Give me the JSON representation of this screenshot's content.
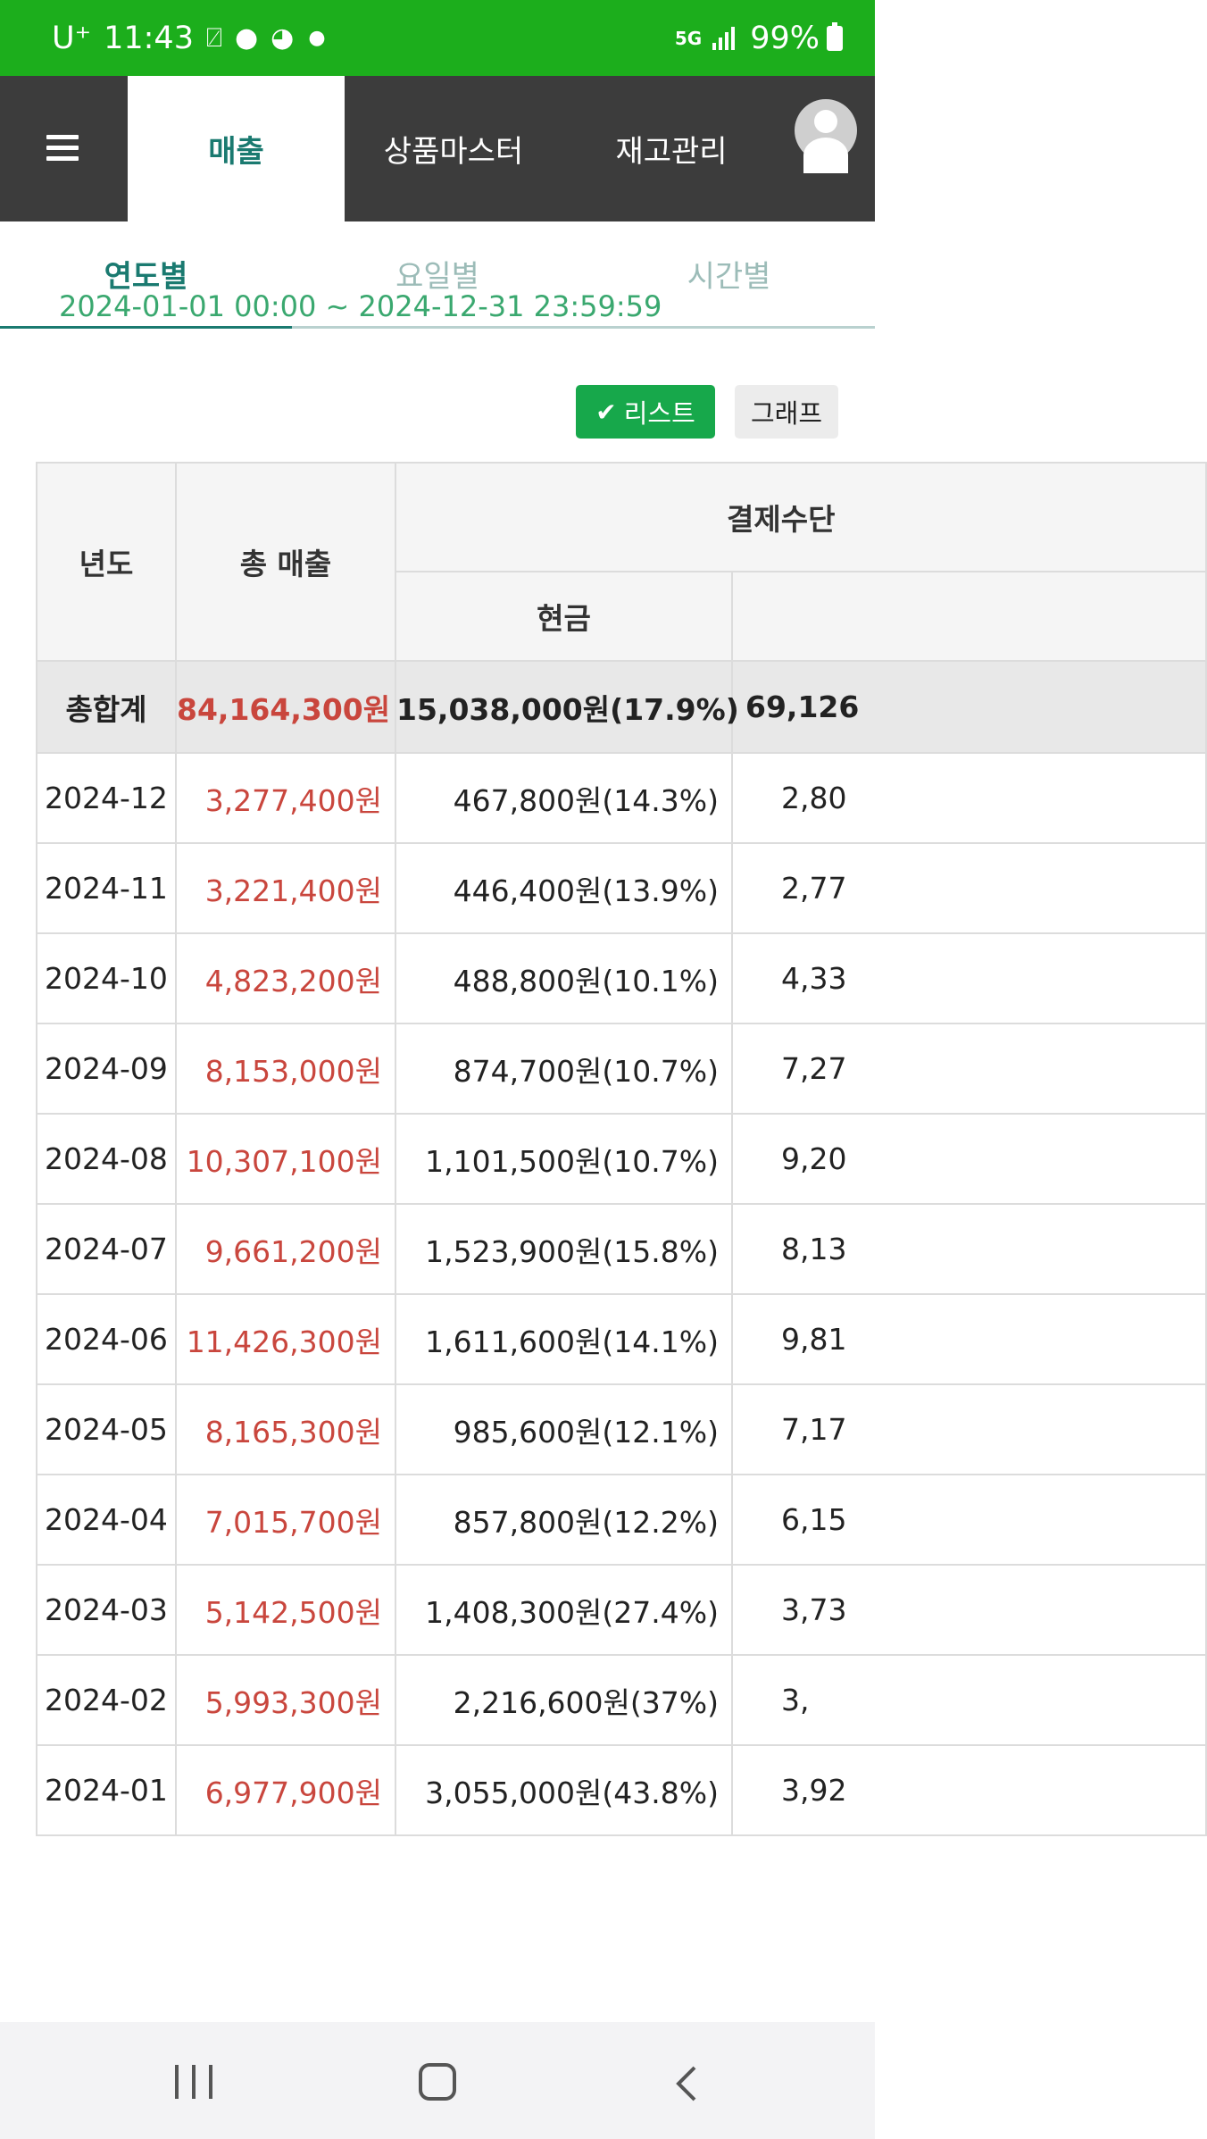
{
  "status_bar": {
    "carrier": "U⁺",
    "time": "11:43",
    "network": "5G",
    "battery": "99%"
  },
  "header": {
    "tabs": [
      {
        "label": "매출",
        "active": true
      },
      {
        "label": "상품마스터",
        "active": false
      },
      {
        "label": "재고관리",
        "active": false
      }
    ]
  },
  "sub_tabs": [
    {
      "label": "연도별",
      "active": true
    },
    {
      "label": "요일별",
      "active": false
    },
    {
      "label": "시간별",
      "active": false
    }
  ],
  "date_range": "2024-01-01 00:00 ~ 2024-12-31 23:59:59",
  "view_buttons": {
    "list_label": "리스트",
    "graph_label": "그래프",
    "active": "list"
  },
  "table": {
    "headers": {
      "year": "년도",
      "total_sales": "총 매출",
      "payment_group": "결제수단",
      "cash": "현금",
      "card": ""
    },
    "total_row": {
      "label": "총합계",
      "sales": "84,164,300원",
      "cash": "15,038,000원(17.9%)",
      "card": "69,126"
    },
    "rows": [
      {
        "year": "2024-12",
        "sales": "3,277,400원",
        "cash": "467,800원(14.3%)",
        "card": "2,80"
      },
      {
        "year": "2024-11",
        "sales": "3,221,400원",
        "cash": "446,400원(13.9%)",
        "card": "2,77"
      },
      {
        "year": "2024-10",
        "sales": "4,823,200원",
        "cash": "488,800원(10.1%)",
        "card": "4,33"
      },
      {
        "year": "2024-09",
        "sales": "8,153,000원",
        "cash": "874,700원(10.7%)",
        "card": "7,27"
      },
      {
        "year": "2024-08",
        "sales": "10,307,100원",
        "cash": "1,101,500원(10.7%)",
        "card": "9,20"
      },
      {
        "year": "2024-07",
        "sales": "9,661,200원",
        "cash": "1,523,900원(15.8%)",
        "card": "8,13"
      },
      {
        "year": "2024-06",
        "sales": "11,426,300원",
        "cash": "1,611,600원(14.1%)",
        "card": "9,81"
      },
      {
        "year": "2024-05",
        "sales": "8,165,300원",
        "cash": "985,600원(12.1%)",
        "card": "7,17"
      },
      {
        "year": "2024-04",
        "sales": "7,015,700원",
        "cash": "857,800원(12.2%)",
        "card": "6,15"
      },
      {
        "year": "2024-03",
        "sales": "5,142,500원",
        "cash": "1,408,300원(27.4%)",
        "card": "3,73"
      },
      {
        "year": "2024-02",
        "sales": "5,993,300원",
        "cash": "2,216,600원(37%)",
        "card": "3,"
      },
      {
        "year": "2024-01",
        "sales": "6,977,900원",
        "cash": "3,055,000원(43.8%)",
        "card": "3,92"
      }
    ]
  },
  "colors": {
    "status_bar": "#1cae1c",
    "header_bg": "#3c3c3c",
    "accent_teal": "#1a7a70",
    "list_button": "#17a84b",
    "sales_red": "#c9463d"
  },
  "icons": [
    "menu-icon",
    "avatar-icon",
    "check-icon",
    "recent-apps-icon",
    "home-icon",
    "back-icon"
  ]
}
